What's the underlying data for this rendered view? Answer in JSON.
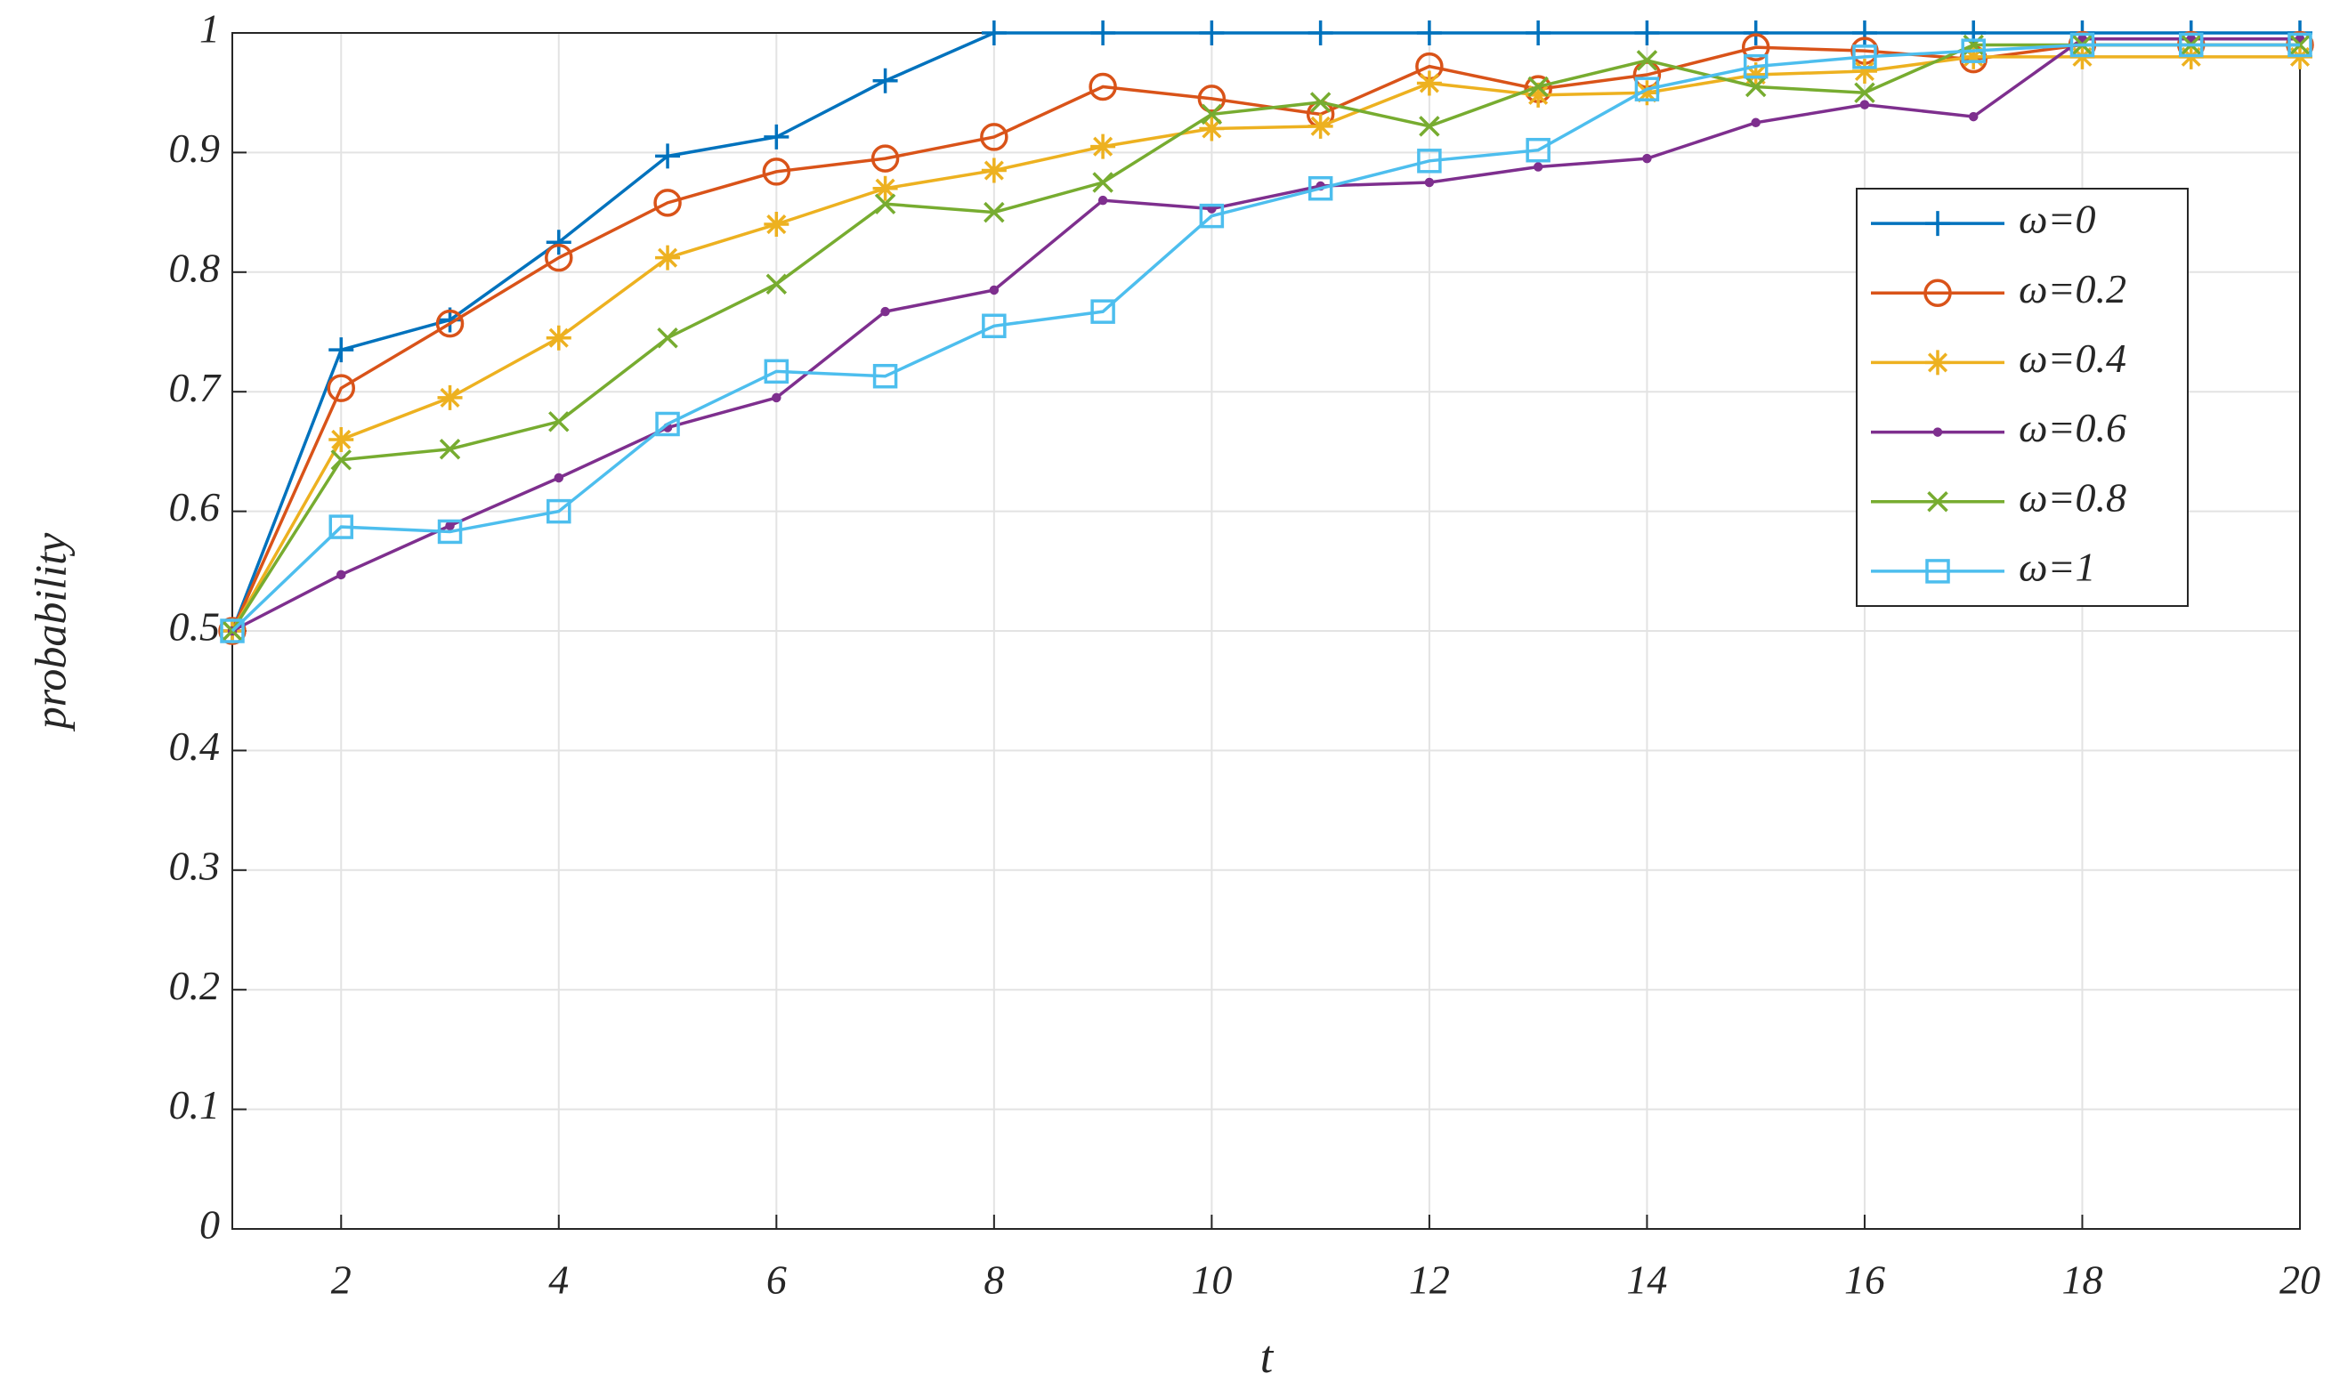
{
  "chart_data": {
    "type": "line",
    "xlabel": "t",
    "ylabel": "probability",
    "x": [
      1,
      2,
      3,
      4,
      5,
      6,
      7,
      8,
      9,
      10,
      11,
      12,
      13,
      14,
      15,
      16,
      17,
      18,
      19,
      20
    ],
    "xlim": [
      1,
      20
    ],
    "xticks": [
      2,
      4,
      6,
      8,
      10,
      12,
      14,
      16,
      18,
      20
    ],
    "ylim": [
      0,
      1
    ],
    "yticks": [
      0,
      0.1,
      0.2,
      0.3,
      0.4,
      0.5,
      0.6,
      0.7,
      0.8,
      0.9,
      1
    ],
    "grid": true,
    "legend": "northeast",
    "series": [
      {
        "name": "ω=0",
        "color": "#0072BD",
        "marker": "plus",
        "values": [
          0.5,
          0.735,
          0.76,
          0.825,
          0.897,
          0.913,
          0.96,
          1,
          1,
          1,
          1,
          1,
          1,
          1,
          1,
          1,
          1,
          1,
          1,
          1
        ]
      },
      {
        "name": "ω=0.2",
        "color": "#D95319",
        "marker": "circle",
        "values": [
          0.5,
          0.703,
          0.757,
          0.812,
          0.858,
          0.884,
          0.895,
          0.913,
          0.955,
          0.945,
          0.932,
          0.972,
          0.953,
          0.965,
          0.988,
          0.985,
          0.978,
          0.99,
          0.99,
          0.99
        ]
      },
      {
        "name": "ω=0.4",
        "color": "#EDB120",
        "marker": "star",
        "values": [
          0.5,
          0.66,
          0.695,
          0.745,
          0.812,
          0.84,
          0.87,
          0.885,
          0.905,
          0.92,
          0.922,
          0.958,
          0.948,
          0.95,
          0.965,
          0.968,
          0.98,
          0.98,
          0.98,
          0.98
        ]
      },
      {
        "name": "ω=0.6",
        "color": "#7E2F8E",
        "marker": "point",
        "values": [
          0.5,
          0.547,
          0.588,
          0.628,
          0.67,
          0.695,
          0.767,
          0.785,
          0.86,
          0.853,
          0.872,
          0.875,
          0.888,
          0.895,
          0.925,
          0.94,
          0.93,
          0.995,
          0.995,
          0.995
        ]
      },
      {
        "name": "ω=0.8",
        "color": "#77AC30",
        "marker": "x",
        "values": [
          0.5,
          0.643,
          0.652,
          0.675,
          0.745,
          0.79,
          0.857,
          0.85,
          0.875,
          0.932,
          0.942,
          0.922,
          0.955,
          0.977,
          0.955,
          0.95,
          0.99,
          0.99,
          0.99,
          0.99
        ]
      },
      {
        "name": "ω=1",
        "color": "#4DBEEE",
        "marker": "square",
        "values": [
          0.5,
          0.587,
          0.583,
          0.6,
          0.673,
          0.717,
          0.713,
          0.755,
          0.767,
          0.847,
          0.87,
          0.893,
          0.902,
          0.953,
          0.972,
          0.98,
          0.985,
          0.99,
          0.99,
          0.99
        ]
      }
    ]
  }
}
